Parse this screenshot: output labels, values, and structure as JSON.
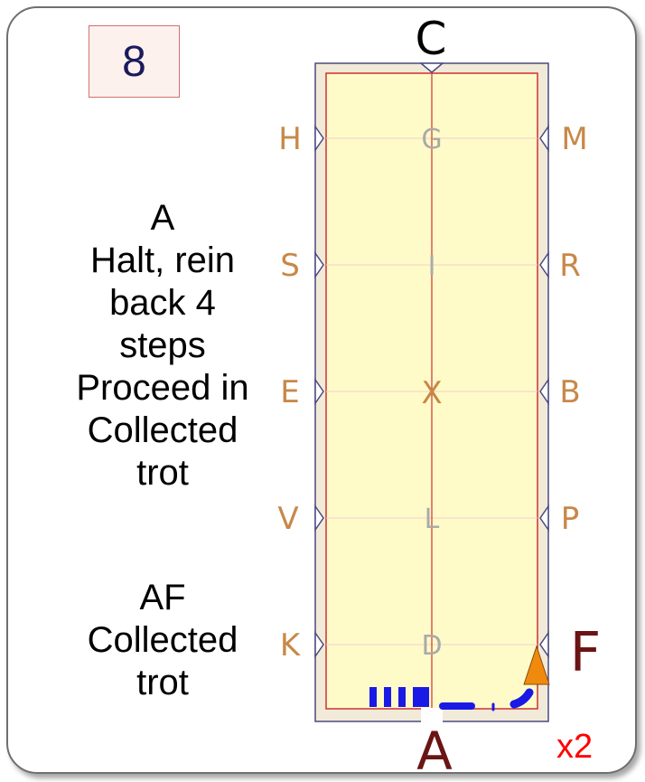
{
  "figure_number": "8",
  "instructions": [
    {
      "lines": [
        "A",
        "Halt, rein",
        "back 4",
        "steps",
        "Proceed in",
        "Collected",
        "trot"
      ]
    },
    {
      "lines": [
        "AF",
        "Collected",
        "trot"
      ]
    }
  ],
  "arena": {
    "top_letter": "C",
    "bottom_letter": "A",
    "left_letters": [
      "H",
      "S",
      "E",
      "V",
      "K"
    ],
    "right_letters": [
      "M",
      "R",
      "B",
      "P"
    ],
    "highlight_letter": "F",
    "centerline_letters": [
      "G",
      "I",
      "X",
      "L",
      "D"
    ]
  },
  "repeat_label": "x2",
  "colors": {
    "arena_fill": "#fffbc8",
    "arena_border": "#cc3333",
    "surround": "#f2ead8",
    "letter": "#c88848",
    "centerline_letter": "#aaaaaa",
    "highlight": "#6b1414",
    "path": "#1a1ae6",
    "marker": "#f08a0e",
    "repeat": "#ff0000"
  }
}
